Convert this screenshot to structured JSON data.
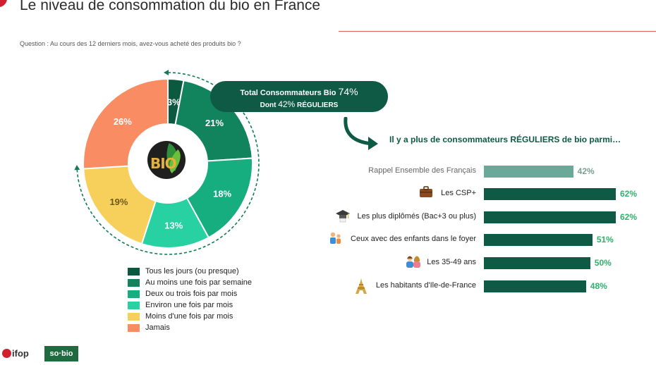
{
  "title": "Le niveau de consommation du bio en France",
  "question": "Question : Au cours des 12 derniers mois, avez-vous acheté des produits bio ?",
  "logo_text": "BIO",
  "callout": {
    "line1_prefix": "Total Consommateurs Bio",
    "line1_value": "74%",
    "line2_prefix": "Dont",
    "line2_value": "42%",
    "line2_suffix": "RÉGULIERS"
  },
  "subhead": "Il y a plus de consommateurs RÉGULIERS de bio parmi…",
  "footer": {
    "ifop": "ifop",
    "sobio": "so·bio"
  },
  "colors": {
    "dark_green": "#0f5a44",
    "teal_gray": "#6aa99a",
    "value_green": "#2db36b",
    "value_gray": "#7a9f95"
  },
  "chart_data": [
    {
      "type": "pie",
      "subtype": "donut",
      "categories": [
        "Tous les jours (ou presque)",
        "Au moins une fois par semaine",
        "Deux ou trois fois par mois",
        "Environ une fois par mois",
        "Moins d'une fois par mois",
        "Jamais"
      ],
      "values": [
        3,
        21,
        18,
        13,
        19,
        26
      ],
      "labels": [
        "3%",
        "21%",
        "18%",
        "13%",
        "19%",
        "26%"
      ],
      "colors": [
        "#0b5a40",
        "#11845e",
        "#17ae7f",
        "#27d1a2",
        "#f7d05c",
        "#fa8c64"
      ],
      "legend": "bottom"
    },
    {
      "type": "bar",
      "orientation": "horizontal",
      "categories": [
        "Rappel Ensemble des Français",
        "Les CSP+",
        "Les plus diplômés (Bac+3 ou plus)",
        "Ceux avec des enfants dans le foyer",
        "Les 35-49 ans",
        "Les habitants d'Ile-de-France"
      ],
      "values": [
        42,
        62,
        62,
        51,
        50,
        48
      ],
      "labels": [
        "42%",
        "62%",
        "62%",
        "51%",
        "50%",
        "48%"
      ],
      "icons": [
        "",
        "briefcase-icon",
        "graduation-cap-icon",
        "family-icon",
        "couple-icon",
        "eiffel-tower-icon"
      ],
      "highlight_first": false
    }
  ]
}
